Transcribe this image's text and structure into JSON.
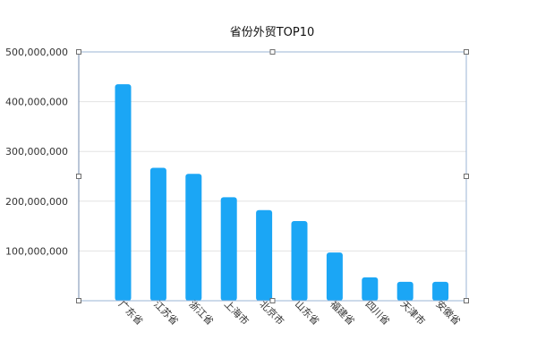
{
  "chart_data": {
    "type": "bar",
    "title": "省份外贸TOP10",
    "xlabel": "",
    "ylabel": "",
    "categories": [
      "广东省",
      "江苏省",
      "浙江省",
      "上海市",
      "北京市",
      "山东省",
      "福建省",
      "四川省",
      "天津市",
      "安徽省"
    ],
    "values": [
      435000000,
      267000000,
      255000000,
      208000000,
      182000000,
      160000000,
      97000000,
      47000000,
      38000000,
      38000000
    ],
    "ylim": [
      0,
      500000000
    ],
    "yticks": [
      100000000,
      200000000,
      300000000,
      400000000,
      500000000
    ],
    "ytick_labels": [
      "100,000,000",
      "200,000,000",
      "300,000,000",
      "400,000,000",
      "500,000,000"
    ],
    "grid": true,
    "legend": "none",
    "bar_color": "#1ba6f5"
  }
}
